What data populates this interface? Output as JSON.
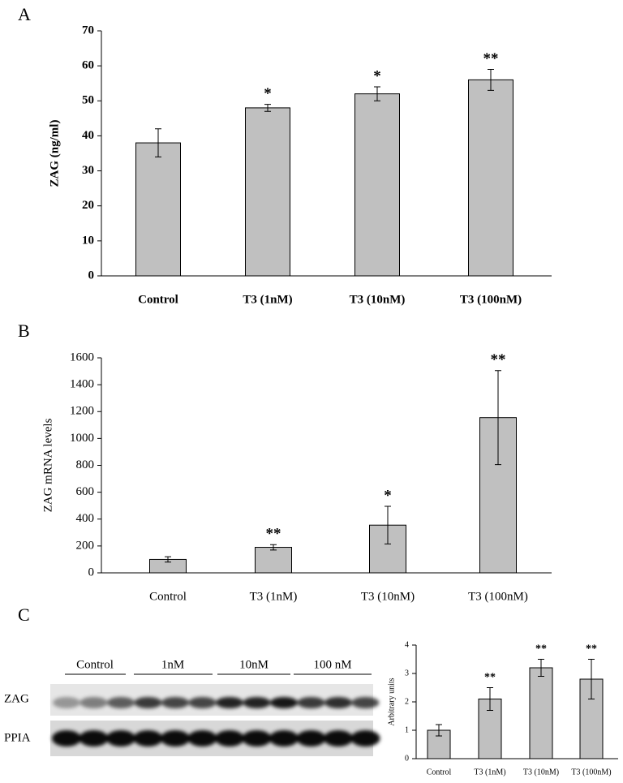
{
  "panel_labels": [
    "A",
    "B",
    "C"
  ],
  "blot": {
    "lanes": [
      "Control",
      "1nM",
      "10nM",
      "100 nM"
    ],
    "rows": [
      "ZAG",
      "PPIA"
    ]
  },
  "chart_data": [
    {
      "type": "bar",
      "ylabel": "ZAG (ng/ml)",
      "categories": [
        "Control",
        "T3 (1nM)",
        "T3 (10nM)",
        "T3 (100nM)"
      ],
      "values": [
        38,
        48,
        52,
        56
      ],
      "errors": [
        4,
        1,
        2,
        3
      ],
      "significance": [
        null,
        "*",
        "*",
        "**"
      ],
      "color": "#c0c0c0",
      "ylim": [
        0,
        70
      ],
      "yticks": [
        0,
        10,
        20,
        30,
        40,
        50,
        60,
        70
      ]
    },
    {
      "type": "bar",
      "ylabel": "ZAG mRNA levels",
      "categories": [
        "Control",
        "T3 (1nM)",
        "T3 (10nM)",
        "T3 (100nM)"
      ],
      "values": [
        100,
        190,
        355,
        1155
      ],
      "errors": [
        20,
        20,
        140,
        350
      ],
      "significance": [
        null,
        "**",
        "*",
        "**"
      ],
      "color": "#c0c0c0",
      "ylim": [
        0,
        1600
      ],
      "yticks": [
        0,
        200,
        400,
        600,
        800,
        1000,
        1200,
        1400,
        1600
      ]
    },
    {
      "type": "bar",
      "ylabel": "Arbitrary units",
      "categories": [
        "Control",
        "T3 (1nM)",
        "T3 (10nM)",
        "T3 (100nM)"
      ],
      "values": [
        1,
        2.1,
        3.2,
        2.8
      ],
      "errors": [
        0.2,
        0.4,
        0.3,
        0.7
      ],
      "significance": [
        null,
        "**",
        "**",
        "**"
      ],
      "color": "#c0c0c0",
      "ylim": [
        0,
        4
      ],
      "yticks": [
        0,
        1,
        2,
        3,
        4
      ]
    }
  ]
}
